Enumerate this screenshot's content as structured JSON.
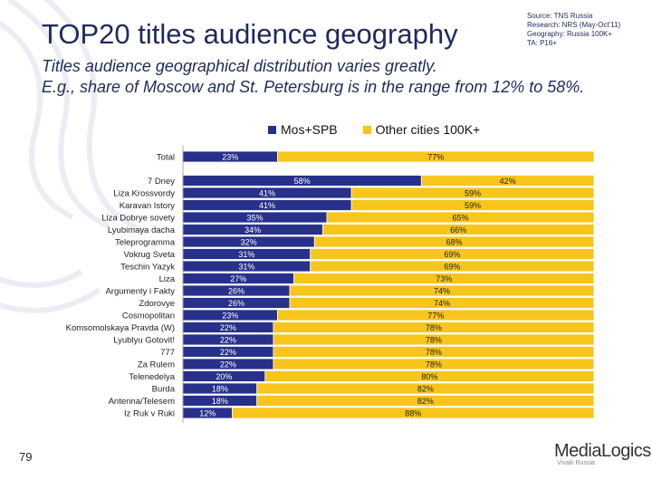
{
  "header": {
    "title": "TOP20 titles audience geography",
    "source_lines": [
      "Source: TNS Russia",
      "Research: NRS (May-Oct'11)",
      "Geography: Russia 100K+",
      "TA: P16+"
    ],
    "subtitle_lines": [
      "Titles audience geographical distribution varies greatly.",
      "E.g., share of Moscow and St. Petersburg is in the range from 12% to 58%."
    ]
  },
  "footer": {
    "page_number": "79",
    "logo_text": "MediaLogics",
    "logo_tagline": "Vivaki Russia"
  },
  "colors": {
    "mos_spb": "#27318b",
    "other": "#f7c51b",
    "text": "#1f2a5c"
  },
  "chart_data": {
    "type": "bar",
    "orientation": "horizontal",
    "stacked": true,
    "percent_stacked": true,
    "legend_position": "top",
    "categories": [
      "Total",
      "7 Dney",
      "Liza Krossvordy",
      "Karavan Istory",
      "Liza Dobrye sovety",
      "Lyubimaya dacha",
      "Teleprogramma",
      "Vokrug Sveta",
      "Teschin Yazyk",
      "Liza",
      "Argumenty i Fakty",
      "Zdorovye",
      "Cosmopolitan",
      "Komsomolskaya Pravda (W)",
      "Lyublyu Gotovit!",
      "777",
      "Za Rulem",
      "Telenedelya",
      "Burda",
      "Antenna/Telesem",
      "Iz Ruk v Ruki"
    ],
    "series": [
      {
        "name": "Mos+SPB",
        "values": [
          23,
          58,
          41,
          41,
          35,
          34,
          32,
          31,
          31,
          27,
          26,
          26,
          23,
          22,
          22,
          22,
          22,
          20,
          18,
          18,
          12
        ],
        "labels": [
          "23%",
          "58%",
          "41%",
          "41%",
          "35%",
          "34%",
          "32%",
          "31%",
          "31%",
          "27%",
          "26%",
          "26%",
          "23%",
          "22%",
          "22%",
          "22%",
          "22%",
          "20%",
          "18%",
          "18%",
          "12%"
        ]
      },
      {
        "name": "Other cities 100K+",
        "values": [
          77,
          42,
          59,
          59,
          65,
          66,
          68,
          69,
          69,
          73,
          74,
          74,
          77,
          78,
          78,
          78,
          78,
          80,
          82,
          82,
          88
        ],
        "labels": [
          "77%",
          "42%",
          "59%",
          "59%",
          "65%",
          "66%",
          "68%",
          "69%",
          "69%",
          "73%",
          "74%",
          "74%",
          "77%",
          "78%",
          "78%",
          "78%",
          "78%",
          "80%",
          "82%",
          "82%",
          "88%"
        ]
      }
    ],
    "xlim": [
      0,
      100
    ],
    "grid": false
  }
}
